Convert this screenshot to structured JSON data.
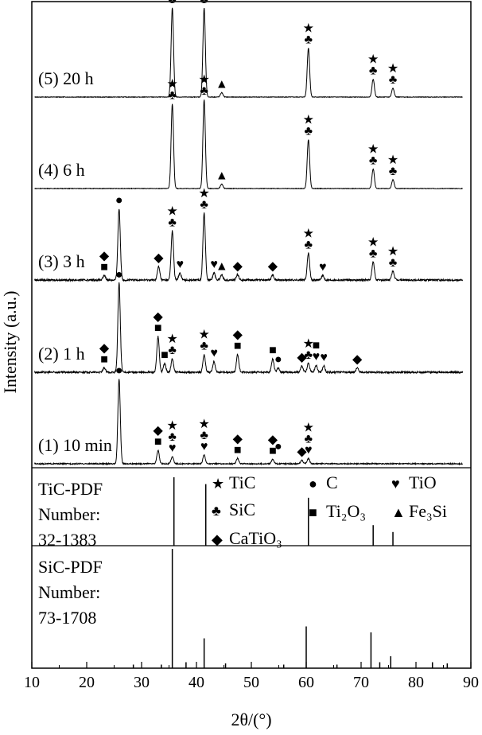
{
  "chart_data": {
    "type": "line",
    "xlabel": "2θ/(°)",
    "ylabel": "Intensity (a.u.)",
    "xlim": [
      10,
      90
    ],
    "xticks": [
      10,
      20,
      30,
      40,
      50,
      60,
      70,
      80,
      90
    ],
    "legend": {
      "position": "inside-middle",
      "items": [
        {
          "symbol": "★",
          "label": "TiC"
        },
        {
          "symbol": "●",
          "label": "C"
        },
        {
          "symbol": "♥",
          "label": "TiO"
        },
        {
          "symbol": "♣",
          "label": "SiC"
        },
        {
          "symbol": "■",
          "label": "Ti₂O₃"
        },
        {
          "symbol": "▲",
          "label": "Fe₃Si"
        },
        {
          "symbol": "◆",
          "label": "CaTiO₃"
        }
      ]
    },
    "series": [
      {
        "name": "(5) 20 h",
        "peaks": [
          [
            35.6,
            1.0
          ],
          [
            41.4,
            1.0
          ],
          [
            44.6,
            0.05
          ],
          [
            60.4,
            0.55
          ],
          [
            72.2,
            0.2
          ],
          [
            75.8,
            0.1
          ]
        ],
        "markers": [
          {
            "x": 35.6,
            "stack": [
              "★",
              "♣"
            ]
          },
          {
            "x": 41.4,
            "stack": [
              "★",
              "♣"
            ]
          },
          {
            "x": 44.6,
            "stack": [
              "▲"
            ]
          },
          {
            "x": 60.4,
            "stack": [
              "★",
              "♣"
            ]
          },
          {
            "x": 72.2,
            "stack": [
              "★",
              "♣"
            ]
          },
          {
            "x": 75.8,
            "stack": [
              "★",
              "♣"
            ]
          }
        ]
      },
      {
        "name": "(4) 6 h",
        "peaks": [
          [
            35.6,
            0.95
          ],
          [
            41.4,
            1.0
          ],
          [
            44.6,
            0.05
          ],
          [
            60.4,
            0.55
          ],
          [
            72.2,
            0.22
          ],
          [
            75.8,
            0.1
          ]
        ],
        "markers": [
          {
            "x": 35.6,
            "stack": [
              "★",
              "♣"
            ]
          },
          {
            "x": 41.4,
            "stack": [
              "★",
              "♣"
            ]
          },
          {
            "x": 44.6,
            "stack": [
              "▲"
            ]
          },
          {
            "x": 60.4,
            "stack": [
              "★",
              "♣"
            ]
          },
          {
            "x": 72.2,
            "stack": [
              "★",
              "♣"
            ]
          },
          {
            "x": 75.8,
            "stack": [
              "★",
              "♣"
            ]
          }
        ]
      },
      {
        "name": "(3) 3 h",
        "peaks": [
          [
            23.2,
            0.05
          ],
          [
            25.9,
            0.8
          ],
          [
            33.1,
            0.15
          ],
          [
            35.6,
            0.55
          ],
          [
            37.0,
            0.08
          ],
          [
            41.4,
            0.75
          ],
          [
            43.2,
            0.08
          ],
          [
            44.6,
            0.06
          ],
          [
            47.5,
            0.06
          ],
          [
            53.9,
            0.06
          ],
          [
            60.4,
            0.3
          ],
          [
            63.0,
            0.05
          ],
          [
            72.2,
            0.2
          ],
          [
            75.8,
            0.1
          ]
        ],
        "markers": [
          {
            "x": 23.2,
            "stack": [
              "◆",
              "■"
            ]
          },
          {
            "x": 25.9,
            "stack": [
              "●"
            ]
          },
          {
            "x": 33.1,
            "stack": [
              "◆"
            ]
          },
          {
            "x": 35.6,
            "stack": [
              "★",
              "♣"
            ]
          },
          {
            "x": 37.0,
            "stack": [
              "♥"
            ]
          },
          {
            "x": 41.4,
            "stack": [
              "★",
              "♣"
            ]
          },
          {
            "x": 43.2,
            "stack": [
              "♥"
            ]
          },
          {
            "x": 44.6,
            "stack": [
              "▲"
            ]
          },
          {
            "x": 47.5,
            "stack": [
              "◆"
            ]
          },
          {
            "x": 53.9,
            "stack": [
              "◆"
            ]
          },
          {
            "x": 60.4,
            "stack": [
              "★",
              "♣"
            ]
          },
          {
            "x": 63.0,
            "stack": [
              "♥"
            ]
          },
          {
            "x": 72.2,
            "stack": [
              "★",
              "♣"
            ]
          },
          {
            "x": 75.8,
            "stack": [
              "★",
              "♣"
            ]
          }
        ]
      },
      {
        "name": "(2) 1 h",
        "peaks": [
          [
            23.2,
            0.05
          ],
          [
            25.9,
            1.0
          ],
          [
            33.0,
            0.4
          ],
          [
            34.2,
            0.1
          ],
          [
            35.6,
            0.15
          ],
          [
            41.4,
            0.2
          ],
          [
            43.2,
            0.12
          ],
          [
            47.5,
            0.2
          ],
          [
            53.9,
            0.15
          ],
          [
            54.9,
            0.05
          ],
          [
            59.2,
            0.07
          ],
          [
            60.4,
            0.1
          ],
          [
            61.8,
            0.08
          ],
          [
            63.2,
            0.07
          ],
          [
            69.3,
            0.05
          ]
        ],
        "markers": [
          {
            "x": 23.2,
            "stack": [
              "◆",
              "■"
            ]
          },
          {
            "x": 25.9,
            "stack": [
              "●"
            ]
          },
          {
            "x": 33.0,
            "stack": [
              "◆",
              "■"
            ]
          },
          {
            "x": 34.2,
            "stack": [
              "■"
            ]
          },
          {
            "x": 35.6,
            "stack": [
              "★",
              "♣"
            ]
          },
          {
            "x": 41.4,
            "stack": [
              "★",
              "♣"
            ]
          },
          {
            "x": 43.2,
            "stack": [
              "♥"
            ]
          },
          {
            "x": 47.5,
            "stack": [
              "◆",
              "■"
            ]
          },
          {
            "x": 53.9,
            "stack": [
              "■"
            ]
          },
          {
            "x": 54.9,
            "stack": [
              "●"
            ]
          },
          {
            "x": 59.2,
            "stack": [
              "◆"
            ]
          },
          {
            "x": 60.4,
            "stack": [
              "★",
              "♣"
            ]
          },
          {
            "x": 61.8,
            "stack": [
              "■",
              "♥"
            ]
          },
          {
            "x": 63.2,
            "stack": [
              "♥"
            ]
          },
          {
            "x": 69.3,
            "stack": [
              "◆"
            ]
          }
        ]
      },
      {
        "name": "(1) 10 min",
        "peaks": [
          [
            25.9,
            0.95
          ],
          [
            33.0,
            0.15
          ],
          [
            35.6,
            0.08
          ],
          [
            41.4,
            0.1
          ],
          [
            47.5,
            0.06
          ],
          [
            53.9,
            0.05
          ],
          [
            59.2,
            0.04
          ],
          [
            60.4,
            0.06
          ]
        ],
        "markers": [
          {
            "x": 25.9,
            "stack": [
              "●"
            ]
          },
          {
            "x": 33.0,
            "stack": [
              "◆",
              "■"
            ]
          },
          {
            "x": 35.6,
            "stack": [
              "★",
              "♣",
              "♥"
            ]
          },
          {
            "x": 41.4,
            "stack": [
              "★",
              "♣",
              "♥"
            ]
          },
          {
            "x": 47.5,
            "stack": [
              "◆",
              "■"
            ]
          },
          {
            "x": 53.9,
            "stack": [
              "◆",
              "■"
            ]
          },
          {
            "x": 54.9,
            "stack": [
              "●"
            ]
          },
          {
            "x": 59.2,
            "stack": [
              "◆"
            ]
          },
          {
            "x": 60.4,
            "stack": [
              "★",
              "♣",
              "♥"
            ]
          }
        ]
      }
    ],
    "references": [
      {
        "label": [
          "TiC-PDF",
          "Number:",
          "32-1383"
        ],
        "lines": [
          [
            35.9,
            1.0
          ],
          [
            41.7,
            0.9
          ],
          [
            60.4,
            0.7
          ],
          [
            72.2,
            0.3
          ],
          [
            75.8,
            0.2
          ]
        ]
      },
      {
        "label": [
          "SiC-PDF",
          "Number:",
          "73-1708"
        ],
        "lines": [
          [
            35.6,
            1.0
          ],
          [
            41.4,
            0.25
          ],
          [
            60.0,
            0.35
          ],
          [
            71.8,
            0.3
          ],
          [
            75.4,
            0.1
          ],
          [
            38.1,
            0.05
          ],
          [
            45.3,
            0.04
          ],
          [
            65.6,
            0.03
          ],
          [
            73.4,
            0.05
          ],
          [
            83.0,
            0.05
          ],
          [
            85.7,
            0.04
          ],
          [
            28.5,
            0.03
          ],
          [
            33.6,
            0.03
          ],
          [
            55.9,
            0.03
          ]
        ]
      }
    ]
  }
}
